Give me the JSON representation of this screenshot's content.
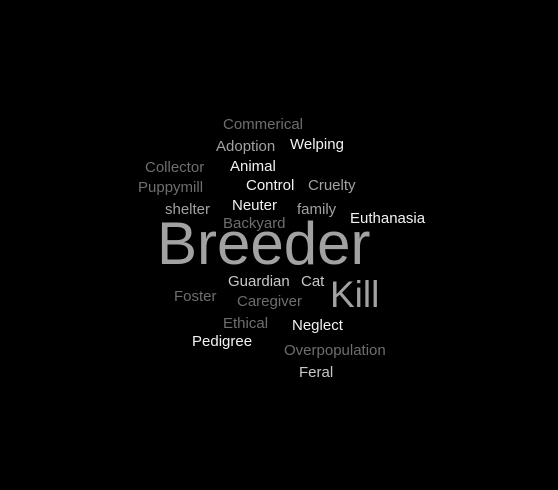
{
  "word_cloud": {
    "background": "#000000",
    "words": {
      "commerical": "Commerical",
      "adoption": "Adoption",
      "welping": "Welping",
      "collector": "Collector",
      "animal": "Animal",
      "puppymill": "Puppymill",
      "control": "Control",
      "cruelty": "Cruelty",
      "shelter": "shelter",
      "neuter": "Neuter",
      "family": "family",
      "euthanasia": "Euthanasia",
      "backyard": "Backyard",
      "breeder": "Breeder",
      "guardian": "Guardian",
      "cat": "Cat",
      "kill": "Kill",
      "foster": "Foster",
      "caregiver": "Caregiver",
      "ethical": "Ethical",
      "neglect": "Neglect",
      "pedigree": "Pedigree",
      "overpopulation": "Overpopulation",
      "feral": "Feral"
    },
    "colors": {
      "dim": "#6e6e6e",
      "mid": "#a2a2a2",
      "light": "#c8c8c8",
      "white": "#f2f2f2"
    }
  }
}
